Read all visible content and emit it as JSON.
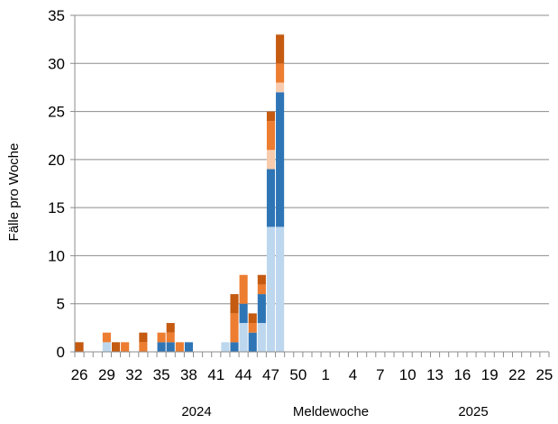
{
  "chart_data": {
    "type": "bar",
    "stacked": true,
    "xlabel": "Meldewoche",
    "ylabel": "Fälle pro Woche",
    "ylim": [
      0,
      35
    ],
    "yticks": [
      0,
      5,
      10,
      15,
      20,
      25,
      30,
      35
    ],
    "grid": "horizontal",
    "year_labels": [
      {
        "text": "2024",
        "near_week": "38/2024"
      },
      {
        "text": "2025",
        "near_week": "13/2025"
      }
    ],
    "categories": [
      "26",
      "27",
      "28",
      "29",
      "30",
      "31",
      "32",
      "33",
      "34",
      "35",
      "36",
      "37",
      "38",
      "39",
      "40",
      "41",
      "42",
      "43",
      "44",
      "45",
      "46",
      "47",
      "48",
      "49",
      "50",
      "51",
      "52",
      "1",
      "2",
      "3",
      "4",
      "5",
      "6",
      "7",
      "8",
      "9",
      "10",
      "11",
      "12",
      "13",
      "14",
      "15",
      "16",
      "17",
      "18",
      "19",
      "20",
      "21",
      "22",
      "23",
      "24",
      "25"
    ],
    "tick_labels": [
      "26",
      "29",
      "32",
      "35",
      "38",
      "41",
      "44",
      "47",
      "50",
      "1",
      "4",
      "7",
      "10",
      "13",
      "16",
      "19",
      "22",
      "25"
    ],
    "series": [
      {
        "color": "#bdd7ee",
        "values": [
          0,
          0,
          0,
          1,
          0,
          0,
          0,
          0,
          0,
          0,
          0,
          0,
          0,
          0,
          0,
          0,
          1,
          0,
          3,
          0,
          3,
          13,
          13,
          0,
          0,
          0,
          0,
          0,
          0,
          0,
          0,
          0,
          0,
          0,
          0,
          0,
          0,
          0,
          0,
          0,
          0,
          0,
          0,
          0,
          0,
          0,
          0,
          0,
          0,
          0,
          0,
          0
        ]
      },
      {
        "color": "#2e75b6",
        "values": [
          0,
          0,
          0,
          0,
          0,
          0,
          0,
          0,
          0,
          1,
          1,
          0,
          1,
          0,
          0,
          0,
          0,
          1,
          2,
          2,
          3,
          6,
          14,
          0,
          0,
          0,
          0,
          0,
          0,
          0,
          0,
          0,
          0,
          0,
          0,
          0,
          0,
          0,
          0,
          0,
          0,
          0,
          0,
          0,
          0,
          0,
          0,
          0,
          0,
          0,
          0,
          0
        ]
      },
      {
        "color": "#f8cbad",
        "values": [
          0,
          0,
          0,
          0,
          0,
          0,
          0,
          0,
          0,
          0,
          0,
          0,
          0,
          0,
          0,
          0,
          0,
          0,
          0,
          0,
          0,
          2,
          1,
          0,
          0,
          0,
          0,
          0,
          0,
          0,
          0,
          0,
          0,
          0,
          0,
          0,
          0,
          0,
          0,
          0,
          0,
          0,
          0,
          0,
          0,
          0,
          0,
          0,
          0,
          0,
          0,
          0
        ]
      },
      {
        "color": "#ed7d31",
        "values": [
          0,
          0,
          0,
          1,
          0,
          1,
          0,
          1,
          0,
          1,
          1,
          1,
          0,
          0,
          0,
          0,
          0,
          3,
          3,
          1,
          1,
          3,
          2,
          0,
          0,
          0,
          0,
          0,
          0,
          0,
          0,
          0,
          0,
          0,
          0,
          0,
          0,
          0,
          0,
          0,
          0,
          0,
          0,
          0,
          0,
          0,
          0,
          0,
          0,
          0,
          0,
          0
        ]
      },
      {
        "color": "#c55a11",
        "values": [
          1,
          0,
          0,
          0,
          1,
          0,
          0,
          1,
          0,
          0,
          1,
          0,
          0,
          0,
          0,
          0,
          0,
          2,
          0,
          1,
          1,
          1,
          3,
          0,
          0,
          0,
          0,
          0,
          0,
          0,
          0,
          0,
          0,
          0,
          0,
          0,
          0,
          0,
          0,
          0,
          0,
          0,
          0,
          0,
          0,
          0,
          0,
          0,
          0,
          0,
          0,
          0
        ]
      }
    ]
  }
}
